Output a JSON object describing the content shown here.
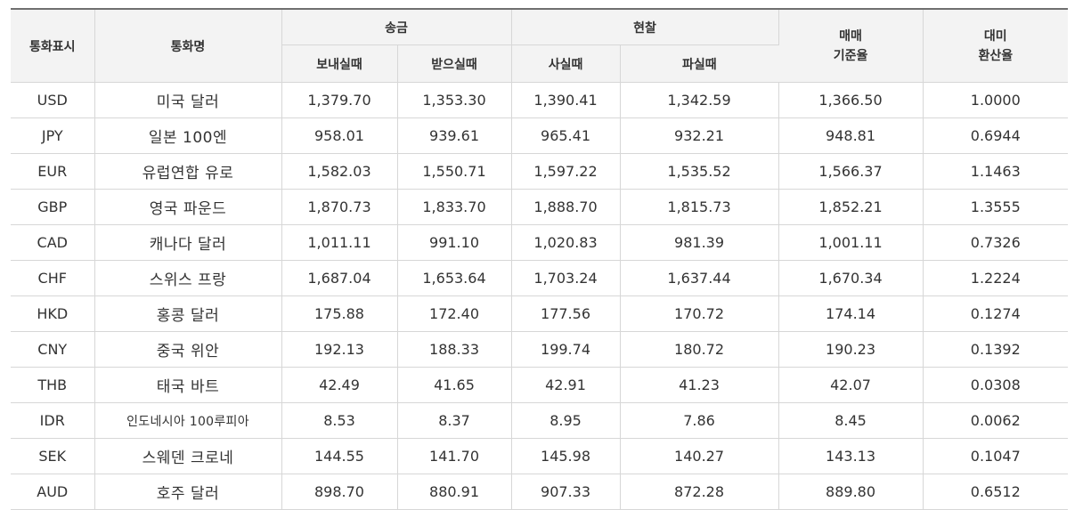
{
  "table": {
    "headers": {
      "code": "통화표시",
      "name": "통화명",
      "remit": "송금",
      "send": "보내실때",
      "receive": "받으실때",
      "cash": "현찰",
      "buy": "사실때",
      "sell": "파실때",
      "base_line1": "매매",
      "base_line2": "기준율",
      "usd_line1": "대미",
      "usd_line2": "환산율"
    },
    "rows": [
      {
        "code": "USD",
        "name": "미국 달러",
        "send": "1,379.70",
        "receive": "1,353.30",
        "buy": "1,390.41",
        "sell": "1,342.59",
        "base": "1,366.50",
        "usd": "1.0000"
      },
      {
        "code": "JPY",
        "name": "일본 100엔",
        "send": "958.01",
        "receive": "939.61",
        "buy": "965.41",
        "sell": "932.21",
        "base": "948.81",
        "usd": "0.6944"
      },
      {
        "code": "EUR",
        "name": "유럽연합 유로",
        "send": "1,582.03",
        "receive": "1,550.71",
        "buy": "1,597.22",
        "sell": "1,535.52",
        "base": "1,566.37",
        "usd": "1.1463"
      },
      {
        "code": "GBP",
        "name": "영국 파운드",
        "send": "1,870.73",
        "receive": "1,833.70",
        "buy": "1,888.70",
        "sell": "1,815.73",
        "base": "1,852.21",
        "usd": "1.3555"
      },
      {
        "code": "CAD",
        "name": "캐나다 달러",
        "send": "1,011.11",
        "receive": "991.10",
        "buy": "1,020.83",
        "sell": "981.39",
        "base": "1,001.11",
        "usd": "0.7326"
      },
      {
        "code": "CHF",
        "name": "스위스 프랑",
        "send": "1,687.04",
        "receive": "1,653.64",
        "buy": "1,703.24",
        "sell": "1,637.44",
        "base": "1,670.34",
        "usd": "1.2224"
      },
      {
        "code": "HKD",
        "name": "홍콩 달러",
        "send": "175.88",
        "receive": "172.40",
        "buy": "177.56",
        "sell": "170.72",
        "base": "174.14",
        "usd": "0.1274"
      },
      {
        "code": "CNY",
        "name": "중국 위안",
        "send": "192.13",
        "receive": "188.33",
        "buy": "199.74",
        "sell": "180.72",
        "base": "190.23",
        "usd": "0.1392"
      },
      {
        "code": "THB",
        "name": "태국 바트",
        "send": "42.49",
        "receive": "41.65",
        "buy": "42.91",
        "sell": "41.23",
        "base": "42.07",
        "usd": "0.0308"
      },
      {
        "code": "IDR",
        "name": "인도네시아 100루피아",
        "send": "8.53",
        "receive": "8.37",
        "buy": "8.95",
        "sell": "7.86",
        "base": "8.45",
        "usd": "0.0062"
      },
      {
        "code": "SEK",
        "name": "스웨덴 크로네",
        "send": "144.55",
        "receive": "141.70",
        "buy": "145.98",
        "sell": "140.27",
        "base": "143.13",
        "usd": "0.1047"
      },
      {
        "code": "AUD",
        "name": "호주 달러",
        "send": "898.70",
        "receive": "880.91",
        "buy": "907.33",
        "sell": "872.28",
        "base": "889.80",
        "usd": "0.6512"
      }
    ]
  }
}
